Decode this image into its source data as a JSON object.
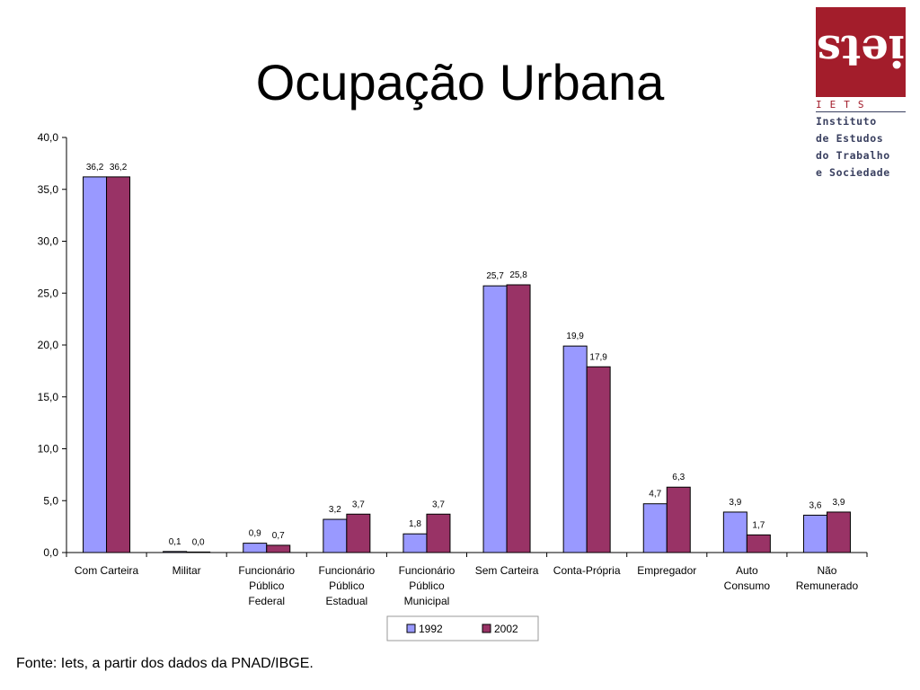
{
  "title": "Ocupação Urbana",
  "source": "Fonte: Iets, a partir dos dados da PNAD/IBGE.",
  "logo": {
    "mark": "iets",
    "abbr": "IETS",
    "lines": [
      "Instituto",
      "de Estudos",
      "do Trabalho",
      "e Sociedade"
    ],
    "color": "#a31d2b"
  },
  "chart_data": {
    "type": "bar",
    "title": "",
    "xlabel": "",
    "ylabel": "",
    "ylim": [
      0,
      40
    ],
    "yticks": [
      "0,0",
      "5,0",
      "10,0",
      "15,0",
      "20,0",
      "25,0",
      "30,0",
      "35,0",
      "40,0"
    ],
    "grid": false,
    "legend_position": "bottom",
    "categories": [
      [
        "Com Carteira"
      ],
      [
        "Militar"
      ],
      [
        "Funcionário",
        "Público",
        "Federal"
      ],
      [
        "Funcionário",
        "Público",
        "Estadual"
      ],
      [
        "Funcionário",
        "Público",
        "Municipal"
      ],
      [
        "Sem Carteira"
      ],
      [
        "Conta-Própria"
      ],
      [
        "Empregador"
      ],
      [
        "Auto",
        "Consumo"
      ],
      [
        "Não",
        "Remunerado"
      ]
    ],
    "series": [
      {
        "name": "1992",
        "color": "#9999ff",
        "values": [
          36.2,
          0.1,
          0.9,
          3.2,
          1.8,
          25.7,
          19.9,
          4.7,
          3.9,
          3.6
        ],
        "labels": [
          "36,2",
          "0,1",
          "0,9",
          "3,2",
          "1,8",
          "25,7",
          "19,9",
          "4,7",
          "3,9",
          "3,6"
        ]
      },
      {
        "name": "2002",
        "color": "#993366",
        "values": [
          36.2,
          0.0,
          0.7,
          3.7,
          3.7,
          25.8,
          17.9,
          6.3,
          1.7,
          3.9
        ],
        "labels": [
          "36,2",
          "0,0",
          "0,7",
          "3,7",
          "3,7",
          "25,8",
          "17,9",
          "6,3",
          "1,7",
          "3,9"
        ]
      }
    ]
  }
}
